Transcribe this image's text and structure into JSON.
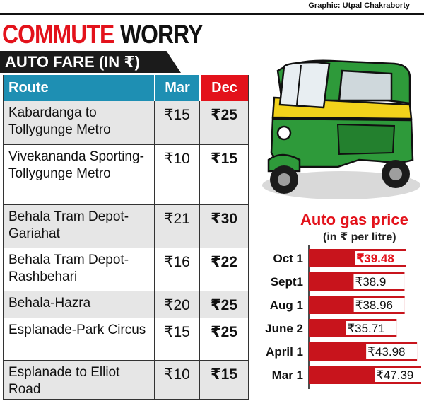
{
  "credit": "Graphic: Utpal Chakraborty",
  "headline": {
    "red": "COMMUTE",
    "black": "WORRY"
  },
  "subhead": "AUTO FARE (IN ₹)",
  "table": {
    "headers": {
      "route": "Route",
      "mar": "Mar",
      "dec": "Dec"
    },
    "rows": [
      {
        "route": "Kabardanga to Tollygunge Metro",
        "mar": "₹15",
        "dec": "₹25",
        "height": 62
      },
      {
        "route": "Vivekananda Sporting-Tollygunge Metro",
        "mar": "₹10",
        "dec": "₹15",
        "height": 85
      },
      {
        "route": "Behala Tram Depot-Gariahat",
        "mar": "₹21",
        "dec": "₹30",
        "height": 61
      },
      {
        "route": "Behala Tram Depot-Rashbehari",
        "mar": "₹16",
        "dec": "₹22",
        "height": 61
      },
      {
        "route": "Behala-Hazra",
        "mar": "₹20",
        "dec": "₹25",
        "height": 38
      },
      {
        "route": "Esplanade-Park Circus",
        "mar": "₹15",
        "dec": "₹25",
        "height": 60
      },
      {
        "route": "Esplanade to Elliot Road",
        "mar": "₹10",
        "dec": "₹15",
        "height": 55
      }
    ]
  },
  "colors": {
    "red": "#e3121b",
    "blue": "#1e8fb3",
    "dark": "#1b1b1b",
    "rickshaw_green": "#2e9a3a",
    "rickshaw_yellow": "#f2d21b"
  },
  "illustration": "auto-rickshaw-icon",
  "chart_data": {
    "type": "bar",
    "orientation": "horizontal",
    "title": "Auto gas price",
    "subtitle": "(in ₹ per litre)",
    "categories": [
      "Oct 1",
      "Sept1",
      "Aug 1",
      "June 2",
      "April 1",
      "Mar 1"
    ],
    "values": [
      39.48,
      38.9,
      38.96,
      35.71,
      43.98,
      47.39
    ],
    "value_labels": [
      "₹39.48",
      "₹38.9",
      "₹38.96",
      "₹35.71",
      "₹43.98",
      "₹47.39"
    ],
    "highlight_index": 0,
    "bar_color": "#c8141c",
    "highlight_label_color": "#e3121b"
  }
}
